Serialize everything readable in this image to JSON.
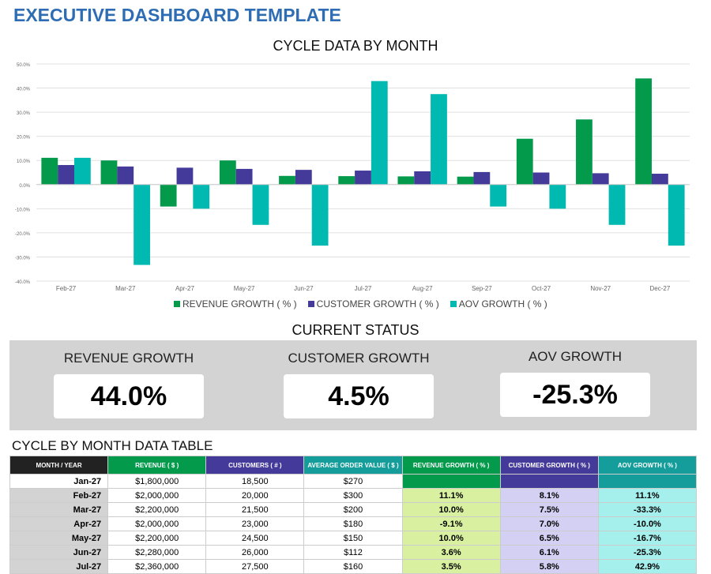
{
  "title": "EXECUTIVE DASHBOARD TEMPLATE",
  "colors": {
    "revenue": "#039a4b",
    "customer": "#443a9a",
    "aov": "#00b9b0",
    "title": "#2e6db4"
  },
  "chart_data": {
    "type": "bar",
    "title": "CYCLE DATA BY MONTH",
    "categories": [
      "Feb-27",
      "Mar-27",
      "Apr-27",
      "May-27",
      "Jun-27",
      "Jul-27",
      "Aug-27",
      "Sep-27",
      "Oct-27",
      "Nov-27",
      "Dec-27"
    ],
    "ylim": [
      -40,
      50
    ],
    "yticks": [
      "-40.0%",
      "-30.0%",
      "-20.0%",
      "-10.0%",
      "0.0%",
      "10.0%",
      "20.0%",
      "30.0%",
      "40.0%",
      "50.0%"
    ],
    "grid": true,
    "legend": "bottom",
    "series": [
      {
        "name": "REVENUE GROWTH  ( % )",
        "values": [
          11.1,
          10.0,
          -9.1,
          10.0,
          3.6,
          3.5,
          3.4,
          3.3,
          19.0,
          27.0,
          44.0
        ]
      },
      {
        "name": "CUSTOMER GROWTH  ( % )",
        "values": [
          8.1,
          7.5,
          7.0,
          6.5,
          6.1,
          5.8,
          5.5,
          5.2,
          5.0,
          4.7,
          4.5
        ]
      },
      {
        "name": "AOV GROWTH  ( % )",
        "values": [
          11.1,
          -33.3,
          -10.0,
          -16.7,
          -25.3,
          42.9,
          37.5,
          -9.1,
          -10.0,
          -16.7,
          -25.3
        ]
      }
    ]
  },
  "status": {
    "title": "CURRENT STATUS",
    "cards": [
      {
        "label": "REVENUE GROWTH",
        "value": "44.0%"
      },
      {
        "label": "CUSTOMER GROWTH",
        "value": "4.5%"
      },
      {
        "label": "AOV GROWTH",
        "value": "-25.3%"
      }
    ]
  },
  "table": {
    "title": "CYCLE BY MONTH DATA TABLE",
    "headers": [
      "MONTH / YEAR",
      "REVENUE  ( $ )",
      "CUSTOMERS  ( # )",
      "AVERAGE ORDER VALUE  ( $ )",
      "REVENUE GROWTH  ( % )",
      "CUSTOMER GROWTH  ( % )",
      "AOV GROWTH  ( % )"
    ],
    "rows": [
      [
        "Jan-27",
        "$1,800,000",
        "18,500",
        "$270",
        "",
        "",
        ""
      ],
      [
        "Feb-27",
        "$2,000,000",
        "20,000",
        "$300",
        "11.1%",
        "8.1%",
        "11.1%"
      ],
      [
        "Mar-27",
        "$2,200,000",
        "21,500",
        "$200",
        "10.0%",
        "7.5%",
        "-33.3%"
      ],
      [
        "Apr-27",
        "$2,000,000",
        "23,000",
        "$180",
        "-9.1%",
        "7.0%",
        "-10.0%"
      ],
      [
        "May-27",
        "$2,200,000",
        "24,500",
        "$150",
        "10.0%",
        "6.5%",
        "-16.7%"
      ],
      [
        "Jun-27",
        "$2,280,000",
        "26,000",
        "$112",
        "3.6%",
        "6.1%",
        "-25.3%"
      ],
      [
        "Jul-27",
        "$2,360,000",
        "27,500",
        "$160",
        "3.5%",
        "5.8%",
        "42.9%"
      ]
    ]
  }
}
